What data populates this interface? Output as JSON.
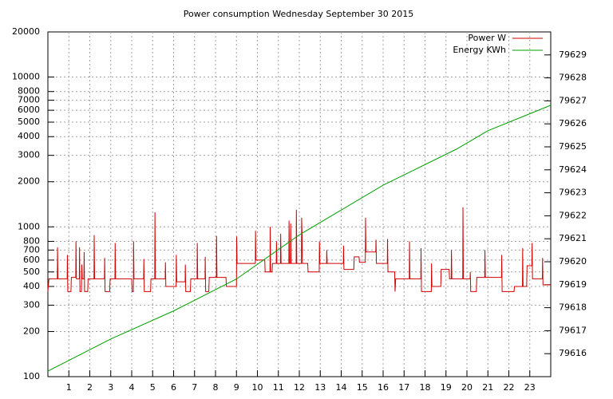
{
  "chart_data": {
    "type": "line",
    "title": "Power consumption Wednesday September 30 2015",
    "ylog": true,
    "grid": true,
    "legend": "top right",
    "xlim": [
      0,
      24
    ],
    "xticks": [
      1,
      2,
      3,
      4,
      5,
      6,
      7,
      8,
      9,
      10,
      11,
      12,
      13,
      14,
      15,
      16,
      17,
      18,
      19,
      20,
      21,
      22,
      23
    ],
    "ylim": [
      100,
      20000
    ],
    "yticks": [
      100,
      200,
      300,
      400,
      500,
      600,
      700,
      800,
      1000,
      2000,
      3000,
      4000,
      5000,
      6000,
      7000,
      8000,
      10000,
      20000
    ],
    "y2lim": [
      79615,
      79630
    ],
    "y2ticks": [
      79616,
      79617,
      79618,
      79619,
      79620,
      79621,
      79622,
      79623,
      79624,
      79625,
      79626,
      79627,
      79628,
      79629
    ],
    "series": [
      {
        "name": "Power W",
        "color": "#d00000",
        "x": [
          0,
          0.05,
          0.45,
          0.46,
          0.48,
          0.92,
          0.93,
          0.95,
          1.1,
          1.12,
          1.33,
          1.34,
          1.36,
          1.5,
          1.51,
          1.53,
          1.6,
          1.62,
          1.64,
          1.72,
          1.73,
          1.75,
          1.9,
          1.92,
          2.2,
          2.21,
          2.23,
          2.7,
          2.71,
          2.73,
          2.95,
          2.97,
          3.2,
          3.21,
          3.23,
          4.0,
          4.02,
          4.08,
          4.09,
          4.11,
          4.57,
          4.58,
          4.6,
          4.9,
          4.92,
          5.1,
          5.11,
          5.13,
          5.6,
          5.61,
          5.63,
          6.12,
          6.13,
          6.15,
          6.55,
          6.56,
          6.58,
          6.8,
          6.82,
          7.12,
          7.13,
          7.15,
          7.5,
          7.51,
          7.53,
          7.68,
          7.7,
          8.04,
          8.05,
          8.07,
          8.5,
          8.52,
          9.0,
          9.01,
          9.03,
          9.9,
          9.91,
          9.93,
          10.35,
          10.37,
          10.6,
          10.61,
          10.63,
          10.7,
          10.72,
          10.9,
          10.91,
          10.93,
          11.1,
          11.11,
          11.13,
          11.5,
          11.51,
          11.53,
          11.58,
          11.59,
          11.61,
          11.85,
          11.86,
          11.88,
          12.1,
          12.11,
          12.13,
          12.15,
          12.4,
          12.42,
          12.95,
          12.96,
          12.98,
          13.3,
          13.31,
          13.33,
          14.1,
          14.11,
          14.13,
          14.6,
          14.62,
          14.85,
          14.87,
          15.15,
          15.16,
          15.18,
          15.65,
          15.66,
          15.68,
          16.2,
          16.21,
          16.23,
          16.55,
          16.57,
          16.6,
          17.25,
          17.26,
          17.28,
          17.8,
          17.81,
          17.83,
          18.3,
          18.31,
          18.33,
          18.75,
          18.77,
          19.15,
          19.17,
          19.25,
          19.26,
          19.28,
          19.8,
          19.81,
          19.83,
          20.15,
          20.16,
          20.18,
          20.45,
          20.47,
          20.85,
          20.86,
          20.88,
          21.65,
          21.66,
          21.68,
          22.25,
          22.27,
          22.65,
          22.66,
          22.68,
          22.85,
          22.87,
          23.1,
          23.11,
          23.13,
          23.6,
          23.61,
          23.63,
          24
        ],
        "values": [
          370,
          450,
          450,
          730,
          450,
          450,
          650,
          370,
          370,
          460,
          460,
          800,
          450,
          450,
          730,
          370,
          370,
          560,
          450,
          450,
          680,
          370,
          370,
          450,
          450,
          880,
          450,
          450,
          620,
          370,
          370,
          450,
          450,
          780,
          450,
          450,
          370,
          370,
          800,
          450,
          450,
          610,
          370,
          370,
          450,
          450,
          1250,
          450,
          450,
          580,
          400,
          400,
          650,
          430,
          430,
          560,
          370,
          370,
          450,
          450,
          780,
          450,
          450,
          630,
          370,
          370,
          460,
          460,
          870,
          460,
          460,
          400,
          400,
          860,
          570,
          570,
          940,
          600,
          600,
          500,
          500,
          1000,
          500,
          500,
          570,
          570,
          800,
          570,
          570,
          900,
          570,
          570,
          1100,
          570,
          570,
          1050,
          570,
          570,
          1300,
          570,
          570,
          1150,
          900,
          570,
          570,
          500,
          500,
          800,
          570,
          570,
          700,
          570,
          570,
          750,
          520,
          520,
          630,
          630,
          580,
          580,
          1150,
          680,
          680,
          820,
          570,
          570,
          830,
          500,
          500,
          370,
          450,
          450,
          800,
          450,
          450,
          720,
          370,
          370,
          570,
          400,
          400,
          520,
          520,
          450,
          450,
          700,
          450,
          450,
          1350,
          450,
          450,
          500,
          370,
          370,
          460,
          460,
          700,
          460,
          460,
          650,
          370,
          370,
          400,
          400,
          720,
          400,
          400,
          550,
          550,
          780,
          450,
          450,
          620,
          410,
          410
        ]
      },
      {
        "name": "Energy KWh",
        "color": "#00a000",
        "axis": "y2",
        "x": [
          0,
          3,
          6,
          9,
          12,
          16,
          19.5,
          21,
          24
        ],
        "values": [
          79615.24,
          79616.64,
          79617.86,
          79619.25,
          79621.17,
          79623.33,
          79624.9,
          79625.7,
          79626.81
        ]
      }
    ]
  }
}
